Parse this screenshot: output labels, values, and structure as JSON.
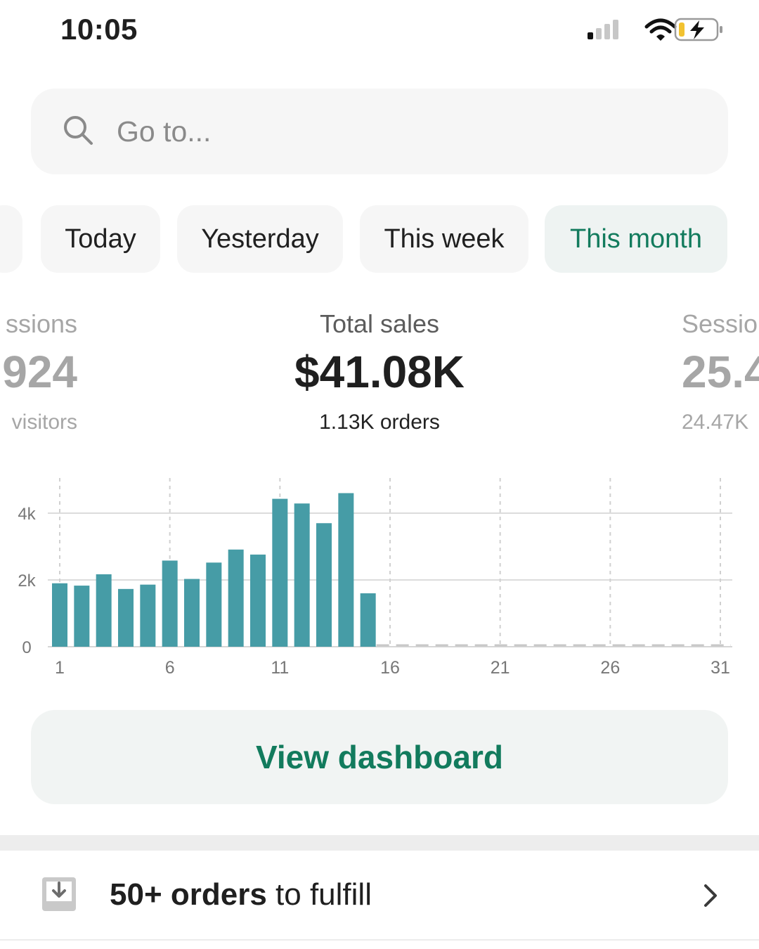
{
  "status_bar": {
    "time": "10:05"
  },
  "search": {
    "placeholder": "Go to..."
  },
  "date_filters": [
    "Today",
    "Yesterday",
    "This week",
    "This month"
  ],
  "date_filters_active": "This month",
  "metrics": {
    "left": {
      "label": "ssions",
      "value": "924",
      "sub": "visitors"
    },
    "center": {
      "label": "Total sales",
      "value": "$41.08K",
      "sub": "1.13K orders"
    },
    "right": {
      "label": "Sessio",
      "value": "25.4",
      "sub": "24.47K"
    }
  },
  "chart_data": {
    "type": "bar",
    "x": [
      1,
      2,
      3,
      4,
      5,
      6,
      7,
      8,
      9,
      10,
      11,
      12,
      13,
      14,
      15
    ],
    "values": [
      1900,
      1830,
      2170,
      1730,
      1860,
      2580,
      2030,
      2520,
      2910,
      2760,
      4430,
      4290,
      3700,
      4600,
      1600
    ],
    "x_ticks": [
      "1",
      "6",
      "11",
      "16",
      "21",
      "26",
      "31"
    ],
    "y_ticks": [
      "0",
      "2k",
      "4k"
    ],
    "xlim": [
      1,
      31
    ],
    "ylim": [
      0,
      4000
    ],
    "grid": true,
    "color": "#469ca6"
  },
  "cta": {
    "label": "View dashboard"
  },
  "orders": {
    "count_label": "50+ orders",
    "suffix": " to fulfill"
  },
  "colors": {
    "accent": "#127b5d",
    "bar": "#469ca6"
  }
}
